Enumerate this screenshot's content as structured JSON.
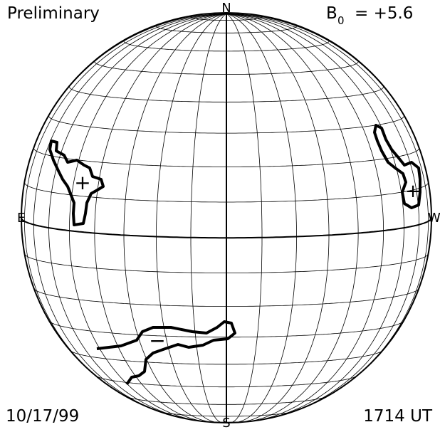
{
  "header": {
    "label": "Preliminary",
    "b0": {
      "symbol": "B",
      "subscript": "0",
      "text": "= +5.6"
    }
  },
  "compass": {
    "north": "N",
    "south": "S",
    "east": "E",
    "west": "W"
  },
  "regions": [
    {
      "polarity": "+"
    },
    {
      "polarity": "+"
    },
    {
      "polarity": "−"
    }
  ],
  "footer": {
    "date": "10/17/99",
    "time": "1714 UT"
  }
}
